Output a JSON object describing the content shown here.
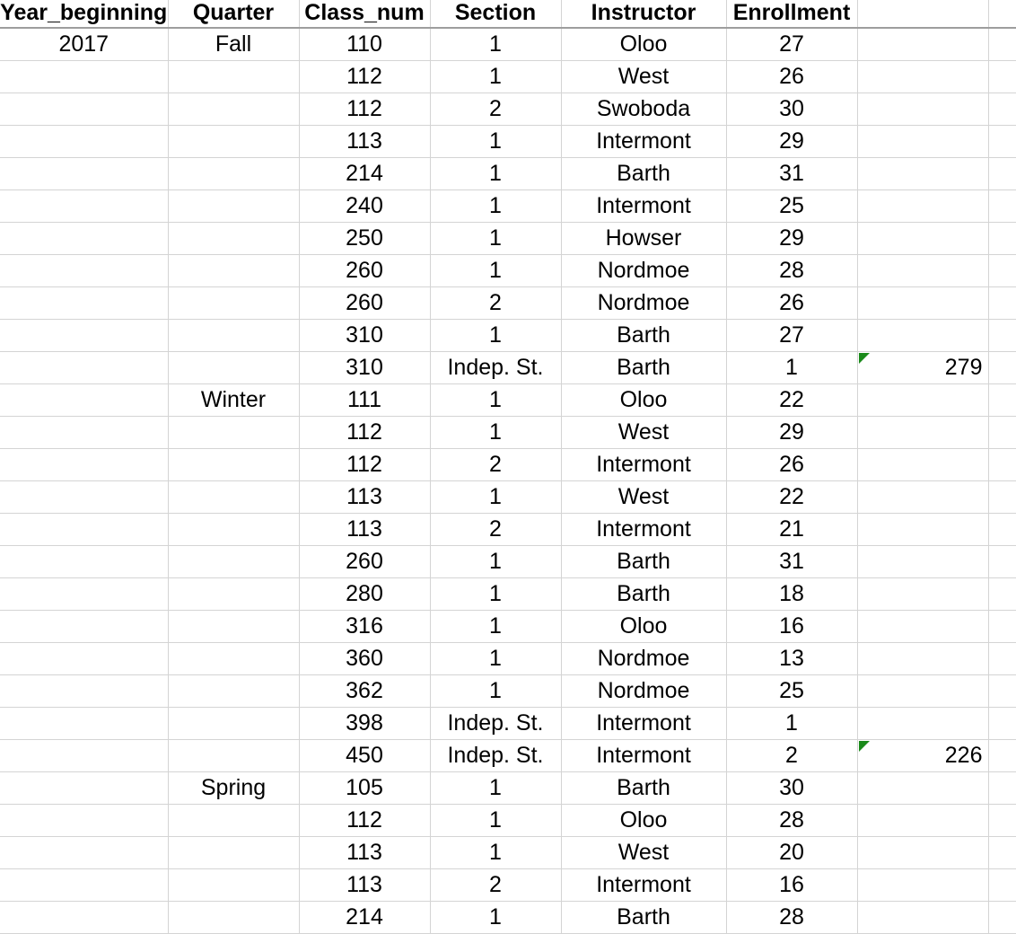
{
  "headers": [
    "Year_beginning",
    "Quarter",
    "Class_num",
    "Section",
    "Instructor",
    "Enrollment"
  ],
  "rows": [
    {
      "year": "2017",
      "quarter": "Fall",
      "class_num": "110",
      "section": "1",
      "instructor": "Oloo",
      "enrollment": "27",
      "total": ""
    },
    {
      "year": "",
      "quarter": "",
      "class_num": "112",
      "section": "1",
      "instructor": "West",
      "enrollment": "26",
      "total": ""
    },
    {
      "year": "",
      "quarter": "",
      "class_num": "112",
      "section": "2",
      "instructor": "Swoboda",
      "enrollment": "30",
      "total": ""
    },
    {
      "year": "",
      "quarter": "",
      "class_num": "113",
      "section": "1",
      "instructor": "Intermont",
      "enrollment": "29",
      "total": ""
    },
    {
      "year": "",
      "quarter": "",
      "class_num": "214",
      "section": "1",
      "instructor": "Barth",
      "enrollment": "31",
      "total": ""
    },
    {
      "year": "",
      "quarter": "",
      "class_num": "240",
      "section": "1",
      "instructor": "Intermont",
      "enrollment": "25",
      "total": ""
    },
    {
      "year": "",
      "quarter": "",
      "class_num": "250",
      "section": "1",
      "instructor": "Howser",
      "enrollment": "29",
      "total": ""
    },
    {
      "year": "",
      "quarter": "",
      "class_num": "260",
      "section": "1",
      "instructor": "Nordmoe",
      "enrollment": "28",
      "total": ""
    },
    {
      "year": "",
      "quarter": "",
      "class_num": "260",
      "section": "2",
      "instructor": "Nordmoe",
      "enrollment": "26",
      "total": ""
    },
    {
      "year": "",
      "quarter": "",
      "class_num": "310",
      "section": "1",
      "instructor": "Barth",
      "enrollment": "27",
      "total": ""
    },
    {
      "year": "",
      "quarter": "",
      "class_num": "310",
      "section": "Indep. St.",
      "instructor": "Barth",
      "enrollment": "1",
      "total": "279",
      "note": true
    },
    {
      "year": "",
      "quarter": "Winter",
      "class_num": "111",
      "section": "1",
      "instructor": "Oloo",
      "enrollment": "22",
      "total": ""
    },
    {
      "year": "",
      "quarter": "",
      "class_num": "112",
      "section": "1",
      "instructor": "West",
      "enrollment": "29",
      "total": ""
    },
    {
      "year": "",
      "quarter": "",
      "class_num": "112",
      "section": "2",
      "instructor": "Intermont",
      "enrollment": "26",
      "total": ""
    },
    {
      "year": "",
      "quarter": "",
      "class_num": "113",
      "section": "1",
      "instructor": "West",
      "enrollment": "22",
      "total": ""
    },
    {
      "year": "",
      "quarter": "",
      "class_num": "113",
      "section": "2",
      "instructor": "Intermont",
      "enrollment": "21",
      "total": ""
    },
    {
      "year": "",
      "quarter": "",
      "class_num": "260",
      "section": "1",
      "instructor": "Barth",
      "enrollment": "31",
      "total": ""
    },
    {
      "year": "",
      "quarter": "",
      "class_num": "280",
      "section": "1",
      "instructor": "Barth",
      "enrollment": "18",
      "total": ""
    },
    {
      "year": "",
      "quarter": "",
      "class_num": "316",
      "section": "1",
      "instructor": "Oloo",
      "enrollment": "16",
      "total": ""
    },
    {
      "year": "",
      "quarter": "",
      "class_num": "360",
      "section": "1",
      "instructor": "Nordmoe",
      "enrollment": "13",
      "total": ""
    },
    {
      "year": "",
      "quarter": "",
      "class_num": "362",
      "section": "1",
      "instructor": "Nordmoe",
      "enrollment": "25",
      "total": ""
    },
    {
      "year": "",
      "quarter": "",
      "class_num": "398",
      "section": "Indep. St.",
      "instructor": "Intermont",
      "enrollment": "1",
      "total": ""
    },
    {
      "year": "",
      "quarter": "",
      "class_num": "450",
      "section": "Indep. St.",
      "instructor": "Intermont",
      "enrollment": "2",
      "total": "226",
      "note": true
    },
    {
      "year": "",
      "quarter": "Spring",
      "class_num": "105",
      "section": "1",
      "instructor": "Barth",
      "enrollment": "30",
      "total": ""
    },
    {
      "year": "",
      "quarter": "",
      "class_num": "112",
      "section": "1",
      "instructor": "Oloo",
      "enrollment": "28",
      "total": ""
    },
    {
      "year": "",
      "quarter": "",
      "class_num": "113",
      "section": "1",
      "instructor": "West",
      "enrollment": "20",
      "total": ""
    },
    {
      "year": "",
      "quarter": "",
      "class_num": "113",
      "section": "2",
      "instructor": "Intermont",
      "enrollment": "16",
      "total": ""
    },
    {
      "year": "",
      "quarter": "",
      "class_num": "214",
      "section": "1",
      "instructor": "Barth",
      "enrollment": "28",
      "total": ""
    }
  ],
  "colors": {
    "gridline": "#d4d4d4",
    "header_rule": "#9e9e9e",
    "note_marker": "#1a8a1a"
  }
}
